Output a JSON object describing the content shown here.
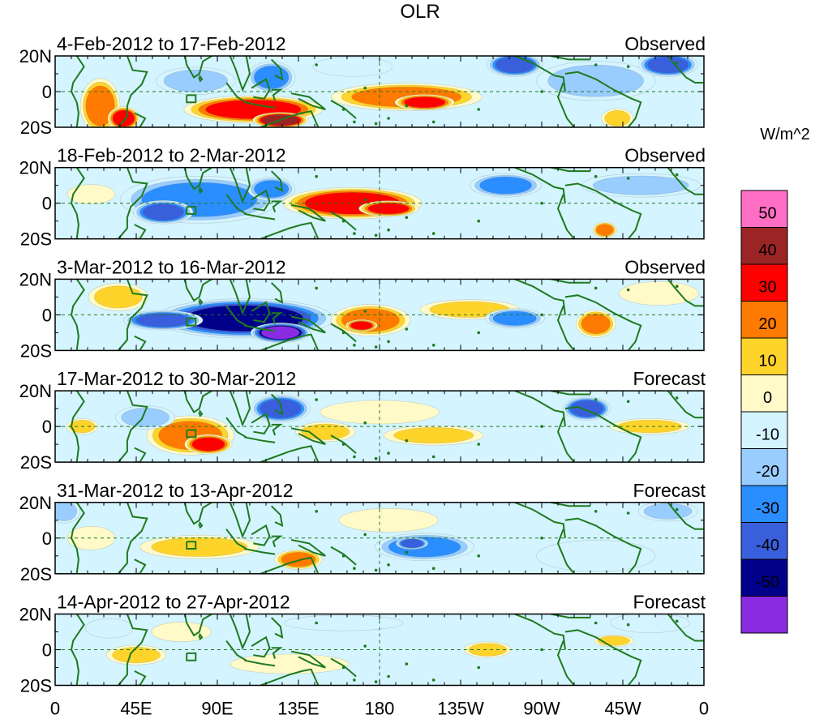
{
  "chart_data": {
    "type": "heatmap",
    "title": "OLR",
    "units_label": "W/m^2",
    "y_ticks": [
      "20N",
      "0",
      "20S"
    ],
    "x_ticks": [
      "0",
      "45E",
      "90E",
      "135E",
      "180",
      "135W",
      "90W",
      "45W",
      "0"
    ],
    "lon_range": [
      0,
      360
    ],
    "lat_range": [
      -20,
      20
    ],
    "panels": [
      {
        "label": "4-Feb-2012 to 17-Feb-2012",
        "status": "Observed",
        "blobs": [
          {
            "lon": 25,
            "lat": -8,
            "rx": 10,
            "ry": 14,
            "v": 25
          },
          {
            "lon": 38,
            "lat": -15,
            "rx": 8,
            "ry": 6,
            "v": 35
          },
          {
            "lon": 110,
            "lat": -10,
            "rx": 35,
            "ry": 7,
            "v": 35
          },
          {
            "lon": 125,
            "lat": -16,
            "rx": 14,
            "ry": 4,
            "v": 50
          },
          {
            "lon": 195,
            "lat": -3,
            "rx": 38,
            "ry": 7,
            "v": 30
          },
          {
            "lon": 205,
            "lat": -6,
            "rx": 15,
            "ry": 4,
            "v": 40
          },
          {
            "lon": 120,
            "lat": 8,
            "rx": 12,
            "ry": 8,
            "v": -25
          },
          {
            "lon": 78,
            "lat": 6,
            "rx": 20,
            "ry": 7,
            "v": -20
          },
          {
            "lon": 255,
            "lat": 15,
            "rx": 14,
            "ry": 6,
            "v": -35
          },
          {
            "lon": 300,
            "lat": 6,
            "rx": 30,
            "ry": 10,
            "v": -15
          },
          {
            "lon": 340,
            "lat": 15,
            "rx": 15,
            "ry": 6,
            "v": -35
          },
          {
            "lon": 312,
            "lat": -15,
            "rx": 8,
            "ry": 5,
            "v": 20
          },
          {
            "lon": 165,
            "lat": 14,
            "rx": 20,
            "ry": 5,
            "v": -10
          }
        ]
      },
      {
        "label": "18-Feb-2012 to 2-Mar-2012",
        "status": "Observed",
        "blobs": [
          {
            "lon": 165,
            "lat": 0,
            "rx": 35,
            "ry": 8,
            "v": 35
          },
          {
            "lon": 185,
            "lat": -3,
            "rx": 15,
            "ry": 4,
            "v": 40
          },
          {
            "lon": 80,
            "lat": 2,
            "rx": 40,
            "ry": 12,
            "v": -30
          },
          {
            "lon": 60,
            "lat": -5,
            "rx": 15,
            "ry": 6,
            "v": -40
          },
          {
            "lon": 120,
            "lat": 8,
            "rx": 12,
            "ry": 6,
            "v": -25
          },
          {
            "lon": 250,
            "lat": 10,
            "rx": 18,
            "ry": 6,
            "v": -25
          },
          {
            "lon": 305,
            "lat": -15,
            "rx": 6,
            "ry": 4,
            "v": 25
          },
          {
            "lon": 20,
            "lat": 5,
            "rx": 12,
            "ry": 5,
            "v": 10
          },
          {
            "lon": 325,
            "lat": 10,
            "rx": 30,
            "ry": 6,
            "v": -15
          }
        ]
      },
      {
        "label": "3-Mar-2012 to 16-Mar-2012",
        "status": "Observed",
        "blobs": [
          {
            "lon": 105,
            "lat": -2,
            "rx": 45,
            "ry": 10,
            "v": -45
          },
          {
            "lon": 125,
            "lat": -10,
            "rx": 15,
            "ry": 5,
            "v": -55
          },
          {
            "lon": 60,
            "lat": -3,
            "rx": 20,
            "ry": 5,
            "v": -35
          },
          {
            "lon": 175,
            "lat": -3,
            "rx": 20,
            "ry": 8,
            "v": 30
          },
          {
            "lon": 170,
            "lat": -6,
            "rx": 8,
            "ry": 3,
            "v": 40
          },
          {
            "lon": 300,
            "lat": -5,
            "rx": 10,
            "ry": 7,
            "v": 25
          },
          {
            "lon": 230,
            "lat": 3,
            "rx": 25,
            "ry": 5,
            "v": 15
          },
          {
            "lon": 255,
            "lat": -2,
            "rx": 15,
            "ry": 5,
            "v": -25
          },
          {
            "lon": 35,
            "lat": 10,
            "rx": 15,
            "ry": 7,
            "v": 15
          },
          {
            "lon": 335,
            "lat": 12,
            "rx": 20,
            "ry": 6,
            "v": 10
          }
        ]
      },
      {
        "label": "17-Mar-2012 to 30-Mar-2012",
        "status": "Forecast",
        "blobs": [
          {
            "lon": 75,
            "lat": -5,
            "rx": 22,
            "ry": 10,
            "v": 30
          },
          {
            "lon": 85,
            "lat": -10,
            "rx": 12,
            "ry": 5,
            "v": 35
          },
          {
            "lon": 125,
            "lat": 10,
            "rx": 15,
            "ry": 7,
            "v": -35
          },
          {
            "lon": 295,
            "lat": 10,
            "rx": 12,
            "ry": 6,
            "v": -40
          },
          {
            "lon": 150,
            "lat": -3,
            "rx": 15,
            "ry": 5,
            "v": 15
          },
          {
            "lon": 210,
            "lat": -5,
            "rx": 25,
            "ry": 5,
            "v": 15
          },
          {
            "lon": 330,
            "lat": 0,
            "rx": 20,
            "ry": 4,
            "v": 20
          },
          {
            "lon": 180,
            "lat": 8,
            "rx": 30,
            "ry": 6,
            "v": 10
          },
          {
            "lon": 50,
            "lat": 5,
            "rx": 15,
            "ry": 6,
            "v": -15
          },
          {
            "lon": 15,
            "lat": 0,
            "rx": 8,
            "ry": 4,
            "v": 15
          }
        ]
      },
      {
        "label": "31-Mar-2012 to 13-Apr-2012",
        "status": "Forecast",
        "blobs": [
          {
            "lon": 80,
            "lat": -5,
            "rx": 30,
            "ry": 6,
            "v": 20
          },
          {
            "lon": 135,
            "lat": -12,
            "rx": 12,
            "ry": 5,
            "v": 30
          },
          {
            "lon": 205,
            "lat": -5,
            "rx": 25,
            "ry": 7,
            "v": -25
          },
          {
            "lon": 198,
            "lat": -3,
            "rx": 8,
            "ry": 3,
            "v": -40
          },
          {
            "lon": 20,
            "lat": 0,
            "rx": 12,
            "ry": 6,
            "v": 10
          },
          {
            "lon": 5,
            "lat": 15,
            "rx": 8,
            "ry": 6,
            "v": -20
          },
          {
            "lon": 340,
            "lat": 15,
            "rx": 15,
            "ry": 5,
            "v": -20
          },
          {
            "lon": 300,
            "lat": -10,
            "rx": 30,
            "ry": 8,
            "v": -10
          },
          {
            "lon": 185,
            "lat": 10,
            "rx": 25,
            "ry": 6,
            "v": 10
          }
        ]
      },
      {
        "label": "14-Apr-2012 to 27-Apr-2012",
        "status": "Forecast",
        "blobs": [
          {
            "lon": 45,
            "lat": -3,
            "rx": 15,
            "ry": 5,
            "v": 20
          },
          {
            "lon": 70,
            "lat": 10,
            "rx": 15,
            "ry": 5,
            "v": 10
          },
          {
            "lon": 240,
            "lat": 0,
            "rx": 12,
            "ry": 4,
            "v": 15
          },
          {
            "lon": 310,
            "lat": 5,
            "rx": 10,
            "ry": 3,
            "v": 20
          },
          {
            "lon": 130,
            "lat": -8,
            "rx": 30,
            "ry": 5,
            "v": 10
          },
          {
            "lon": 30,
            "lat": 12,
            "rx": 12,
            "ry": 5,
            "v": -10
          },
          {
            "lon": 330,
            "lat": 15,
            "rx": 20,
            "ry": 5,
            "v": -10
          },
          {
            "lon": 160,
            "lat": 15,
            "rx": 30,
            "ry": 4,
            "v": -10
          }
        ]
      }
    ],
    "colorbar": {
      "labels": [
        "50",
        "40",
        "30",
        "20",
        "10",
        "0",
        "-10",
        "-20",
        "-30",
        "-40",
        "-50"
      ],
      "bins": [
        {
          "lo": 50,
          "hi": 60,
          "color": "#ff6ec4"
        },
        {
          "lo": 40,
          "hi": 50,
          "color": "#9b2424"
        },
        {
          "lo": 30,
          "hi": 40,
          "color": "#ff0000"
        },
        {
          "lo": 20,
          "hi": 30,
          "color": "#ff7a00"
        },
        {
          "lo": 10,
          "hi": 20,
          "color": "#ffd42a"
        },
        {
          "lo": 0,
          "hi": 10,
          "color": "#fffac8"
        },
        {
          "lo": -10,
          "hi": 0,
          "color": "#d4f4ff"
        },
        {
          "lo": -20,
          "hi": -10,
          "color": "#99ccff"
        },
        {
          "lo": -30,
          "hi": -20,
          "color": "#2b8eff"
        },
        {
          "lo": -40,
          "hi": -30,
          "color": "#3a5fdc"
        },
        {
          "lo": -50,
          "hi": -40,
          "color": "#00008b"
        },
        {
          "lo": -60,
          "hi": -50,
          "color": "#8a2be2"
        }
      ]
    },
    "coast_color": "#1e7a1e",
    "dash_color": "#1e7a1e"
  }
}
